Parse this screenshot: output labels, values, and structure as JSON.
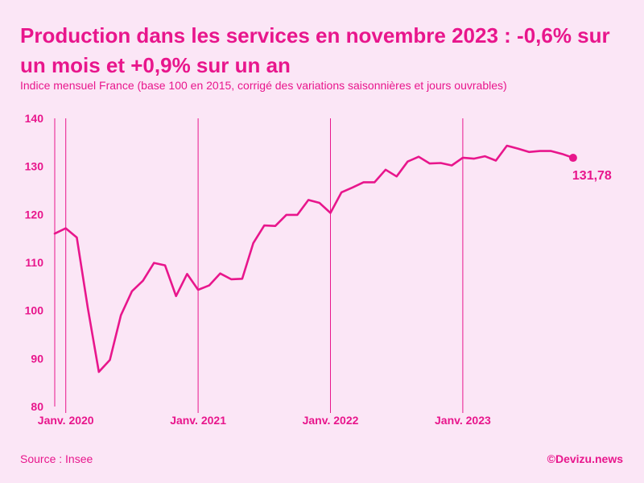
{
  "header": {
    "title": "Production dans les services en novembre 2023 : -0,6% sur un mois et +0,9% sur un an",
    "subtitle": "Indice mensuel France (base 100 en 2015, corrigé des variations saisonnières et jours ouvrables)"
  },
  "footer": {
    "source": "Source : Insee",
    "credit": "©Devizu.news"
  },
  "colors": {
    "accent": "#e8168c",
    "background": "#fbe6f6"
  },
  "chart_data": {
    "type": "line",
    "title": "Production dans les services en novembre 2023 : -0,6% sur un mois et +0,9% sur un an",
    "xlabel": "",
    "ylabel": "",
    "ylim": [
      80,
      140
    ],
    "y_ticks": [
      80,
      90,
      100,
      110,
      120,
      130,
      140
    ],
    "x_tick_labels": [
      {
        "label": "Janv. 2020",
        "index": 1
      },
      {
        "label": "Janv. 2021",
        "index": 13
      },
      {
        "label": "Janv. 2022",
        "index": 25
      },
      {
        "label": "Janv. 2023",
        "index": 37
      }
    ],
    "last_value_label": "131,78",
    "series": [
      {
        "name": "Production dans les services",
        "start": "2019-12",
        "end": "2023-11",
        "values": [
          116.0,
          117.1,
          115.2,
          100.5,
          87.2,
          89.7,
          99.0,
          104.0,
          106.2,
          109.9,
          109.4,
          103.0,
          107.6,
          104.3,
          105.2,
          107.7,
          106.5,
          106.6,
          114.0,
          117.7,
          117.6,
          119.9,
          119.9,
          123.0,
          122.4,
          120.3,
          124.6,
          125.6,
          126.7,
          126.7,
          129.3,
          127.9,
          131.0,
          132.0,
          130.6,
          130.7,
          130.2,
          131.8,
          131.6,
          132.1,
          131.2,
          134.3,
          133.7,
          133.0,
          133.2,
          133.2,
          132.6,
          131.78
        ]
      }
    ]
  }
}
